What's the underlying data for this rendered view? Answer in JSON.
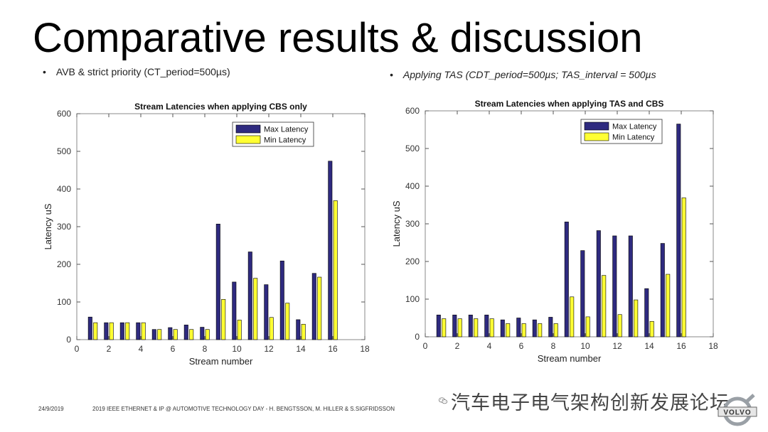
{
  "slide": {
    "title": "Comparative results & discussion",
    "bullet_left": "AVB & strict priority (CT_period=500µs)",
    "bullet_right": "Applying TAS (CDT_period=500µs; TAS_interval = 500µs",
    "bullet_marker": "•"
  },
  "footer": {
    "date": "24/9/2019",
    "conference": "2019 IEEE ETHERNET & IP @ AUTOMOTIVE TECHNOLOGY DAY - H. BENGTSSON, M. HILLER & S.SIGFRIDSSON"
  },
  "watermark": {
    "text": "汽车电子电气架构创新发展论坛"
  },
  "logo": {
    "text": "VOLVO"
  },
  "colors": {
    "max": "#2e2a7f",
    "min": "#ffff33",
    "axis": "#333333",
    "title_bar": "#000000"
  },
  "chart_data": [
    {
      "type": "bar",
      "title": "Stream Latencies when applying CBS only",
      "xlabel": "Stream number",
      "ylabel": "Latency uS",
      "xlim": [
        0,
        18
      ],
      "ylim": [
        0,
        600
      ],
      "xticks": [
        0,
        2,
        4,
        6,
        8,
        10,
        12,
        14,
        16,
        18
      ],
      "yticks": [
        0,
        100,
        200,
        300,
        400,
        500,
        600
      ],
      "legend_position": "top-right",
      "categories": [
        1,
        2,
        3,
        4,
        5,
        6,
        7,
        8,
        9,
        10,
        11,
        12,
        13,
        14,
        15,
        16
      ],
      "series": [
        {
          "name": "Max Latency",
          "values": [
            60,
            45,
            45,
            45,
            27,
            32,
            39,
            33,
            307,
            153,
            233,
            146,
            209,
            53,
            176,
            474
          ]
        },
        {
          "name": "Min Latency",
          "values": [
            45,
            45,
            45,
            45,
            27,
            27,
            27,
            27,
            107,
            52,
            163,
            59,
            97,
            41,
            166,
            369
          ]
        }
      ]
    },
    {
      "type": "bar",
      "title": "Stream Latencies when applying TAS and CBS",
      "xlabel": "Stream number",
      "ylabel": "Latency uS",
      "xlim": [
        0,
        18
      ],
      "ylim": [
        0,
        600
      ],
      "xticks": [
        0,
        2,
        4,
        6,
        8,
        10,
        12,
        14,
        16,
        18
      ],
      "yticks": [
        0,
        100,
        200,
        300,
        400,
        500,
        600
      ],
      "legend_position": "top-right",
      "categories": [
        1,
        2,
        3,
        4,
        5,
        6,
        7,
        8,
        9,
        10,
        11,
        12,
        13,
        14,
        15,
        16
      ],
      "series": [
        {
          "name": "Max Latency",
          "values": [
            58,
            58,
            58,
            58,
            45,
            50,
            45,
            52,
            305,
            229,
            282,
            268,
            268,
            128,
            248,
            565
          ]
        },
        {
          "name": "Min Latency",
          "values": [
            48,
            48,
            48,
            48,
            35,
            35,
            35,
            35,
            106,
            53,
            163,
            59,
            98,
            41,
            166,
            369
          ]
        }
      ]
    }
  ]
}
